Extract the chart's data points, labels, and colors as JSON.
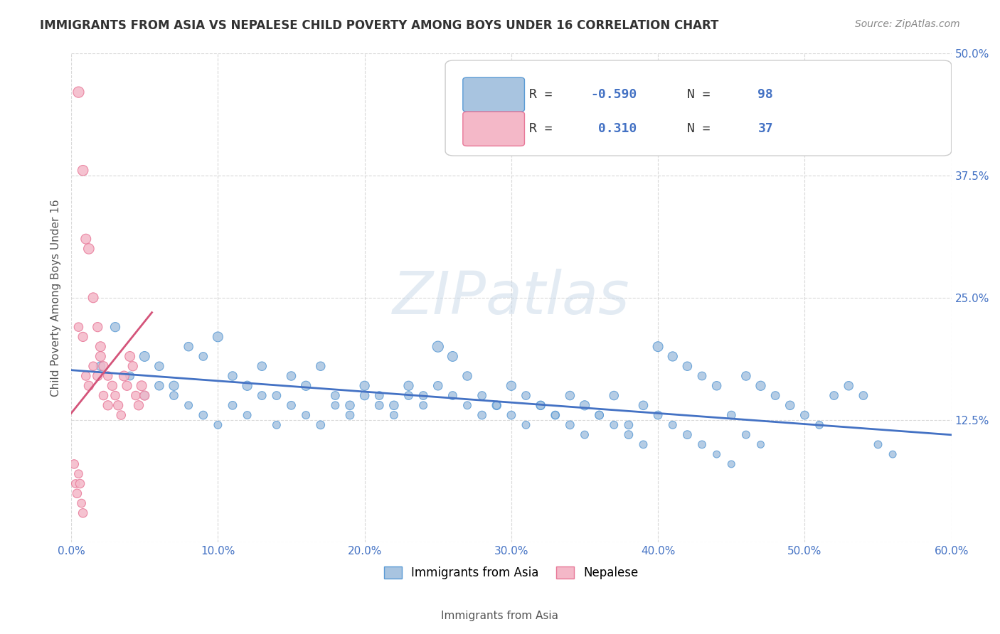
{
  "title": "IMMIGRANTS FROM ASIA VS NEPALESE CHILD POVERTY AMONG BOYS UNDER 16 CORRELATION CHART",
  "source": "Source: ZipAtlas.com",
  "xlabel_bottom": "Immigrants from Asia",
  "ylabel_left": "Child Poverty Among Boys Under 16",
  "x_min": 0.0,
  "x_max": 0.6,
  "y_min": 0.0,
  "y_max": 0.5,
  "yticks": [
    0.0,
    0.125,
    0.25,
    0.375,
    0.5
  ],
  "ytick_labels": [
    "",
    "12.5%",
    "25.0%",
    "37.5%",
    "50.0%"
  ],
  "xticks": [
    0.0,
    0.1,
    0.2,
    0.3,
    0.4,
    0.5,
    0.6
  ],
  "xtick_labels": [
    "0.0%",
    "10.0%",
    "20.0%",
    "30.0%",
    "40.0%",
    "50.0%",
    "60.0%"
  ],
  "blue_color": "#a8c4e0",
  "blue_edge_color": "#5b9bd5",
  "pink_color": "#f4b8c8",
  "pink_edge_color": "#e87898",
  "trend_blue_color": "#4472c4",
  "trend_pink_color": "#d4547a",
  "R_blue": -0.59,
  "N_blue": 98,
  "R_pink": 0.31,
  "N_pink": 37,
  "blue_scatter_x": [
    0.02,
    0.03,
    0.04,
    0.05,
    0.06,
    0.07,
    0.08,
    0.09,
    0.1,
    0.11,
    0.12,
    0.13,
    0.14,
    0.15,
    0.16,
    0.17,
    0.18,
    0.19,
    0.2,
    0.21,
    0.22,
    0.23,
    0.24,
    0.25,
    0.26,
    0.27,
    0.28,
    0.29,
    0.3,
    0.31,
    0.32,
    0.33,
    0.34,
    0.35,
    0.36,
    0.37,
    0.38,
    0.39,
    0.4,
    0.41,
    0.42,
    0.43,
    0.44,
    0.45,
    0.46,
    0.47,
    0.48,
    0.49,
    0.5,
    0.51,
    0.52,
    0.53,
    0.54,
    0.55,
    0.56,
    0.05,
    0.06,
    0.07,
    0.08,
    0.09,
    0.1,
    0.11,
    0.12,
    0.13,
    0.14,
    0.15,
    0.16,
    0.17,
    0.18,
    0.19,
    0.2,
    0.21,
    0.22,
    0.23,
    0.24,
    0.25,
    0.26,
    0.27,
    0.28,
    0.29,
    0.3,
    0.31,
    0.32,
    0.33,
    0.34,
    0.35,
    0.36,
    0.37,
    0.38,
    0.39,
    0.4,
    0.41,
    0.42,
    0.43,
    0.44,
    0.45,
    0.46,
    0.47
  ],
  "blue_scatter_y": [
    0.18,
    0.22,
    0.17,
    0.19,
    0.18,
    0.16,
    0.2,
    0.19,
    0.21,
    0.17,
    0.16,
    0.18,
    0.15,
    0.17,
    0.16,
    0.18,
    0.15,
    0.14,
    0.16,
    0.15,
    0.14,
    0.16,
    0.15,
    0.2,
    0.19,
    0.17,
    0.15,
    0.14,
    0.16,
    0.15,
    0.14,
    0.13,
    0.15,
    0.14,
    0.13,
    0.15,
    0.12,
    0.14,
    0.2,
    0.19,
    0.18,
    0.17,
    0.16,
    0.13,
    0.17,
    0.16,
    0.15,
    0.14,
    0.13,
    0.12,
    0.15,
    0.16,
    0.15,
    0.1,
    0.09,
    0.15,
    0.16,
    0.15,
    0.14,
    0.13,
    0.12,
    0.14,
    0.13,
    0.15,
    0.12,
    0.14,
    0.13,
    0.12,
    0.14,
    0.13,
    0.15,
    0.14,
    0.13,
    0.15,
    0.14,
    0.16,
    0.15,
    0.14,
    0.13,
    0.14,
    0.13,
    0.12,
    0.14,
    0.13,
    0.12,
    0.11,
    0.13,
    0.12,
    0.11,
    0.1,
    0.13,
    0.12,
    0.11,
    0.1,
    0.09,
    0.08,
    0.11,
    0.1
  ],
  "pink_scatter_x": [
    0.005,
    0.008,
    0.01,
    0.012,
    0.015,
    0.018,
    0.02,
    0.022,
    0.025,
    0.028,
    0.03,
    0.032,
    0.034,
    0.036,
    0.038,
    0.04,
    0.042,
    0.044,
    0.046,
    0.048,
    0.05,
    0.005,
    0.008,
    0.01,
    0.012,
    0.015,
    0.018,
    0.02,
    0.022,
    0.025,
    0.002,
    0.003,
    0.004,
    0.005,
    0.006,
    0.007,
    0.008
  ],
  "pink_scatter_y": [
    0.46,
    0.38,
    0.31,
    0.3,
    0.25,
    0.22,
    0.2,
    0.18,
    0.17,
    0.16,
    0.15,
    0.14,
    0.13,
    0.17,
    0.16,
    0.19,
    0.18,
    0.15,
    0.14,
    0.16,
    0.15,
    0.22,
    0.21,
    0.17,
    0.16,
    0.18,
    0.17,
    0.19,
    0.15,
    0.14,
    0.08,
    0.06,
    0.05,
    0.07,
    0.06,
    0.04,
    0.03
  ],
  "blue_sizes": [
    80,
    90,
    70,
    100,
    80,
    90,
    80,
    70,
    100,
    80,
    90,
    80,
    70,
    80,
    90,
    80,
    70,
    80,
    90,
    70,
    80,
    90,
    70,
    120,
    100,
    80,
    70,
    80,
    90,
    70,
    80,
    70,
    80,
    90,
    70,
    80,
    70,
    80,
    100,
    90,
    80,
    70,
    80,
    70,
    80,
    90,
    70,
    80,
    70,
    60,
    70,
    80,
    70,
    60,
    50,
    70,
    80,
    70,
    60,
    70,
    60,
    70,
    60,
    70,
    60,
    70,
    60,
    70,
    60,
    70,
    80,
    70,
    60,
    70,
    60,
    80,
    70,
    60,
    70,
    60,
    70,
    60,
    70,
    60,
    70,
    60,
    70,
    60,
    70,
    60,
    70,
    60,
    70,
    60,
    50,
    50,
    60,
    50
  ],
  "pink_sizes": [
    120,
    110,
    100,
    110,
    100,
    90,
    100,
    90,
    80,
    90,
    80,
    90,
    80,
    100,
    90,
    100,
    90,
    80,
    90,
    100,
    90,
    80,
    90,
    80,
    90,
    80,
    90,
    100,
    80,
    90,
    80,
    70,
    80,
    70,
    80,
    70,
    80
  ],
  "watermark": "ZIPatlas",
  "watermark_color": "#c8d8e8",
  "bg_color": "#ffffff",
  "grid_color": "#d0d0d0"
}
